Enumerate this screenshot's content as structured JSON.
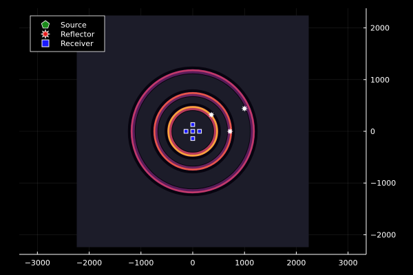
{
  "chart_data": {
    "type": "scatter",
    "title": "",
    "xlabel": "",
    "ylabel": "",
    "xlim": [
      -3350,
      3350
    ],
    "ylim": [
      -2380,
      2380
    ],
    "grid": true,
    "aspect": "equal",
    "x_ticks": [
      -3000,
      -2000,
      -1000,
      0,
      1000,
      2000,
      3000
    ],
    "x_tick_labels": [
      "−3000",
      "−2000",
      "−1000",
      "0",
      "1000",
      "2000",
      "3000"
    ],
    "y_ticks": [
      2000,
      1000,
      0,
      -1000,
      -2000
    ],
    "y_tick_labels": [
      "2000",
      "1000",
      "0",
      "−1000",
      "−2000"
    ],
    "heatmap_extent": [
      -2240,
      2240,
      -2240,
      2240
    ],
    "heatmap_background": "#1c1c29",
    "rings": [
      {
        "radius": 1180,
        "color": "#c2396b",
        "inner_glow": "#5a1c5a"
      },
      {
        "radius": 740,
        "color": "#e8554a",
        "inner_glow": "#6e2460"
      },
      {
        "radius": 470,
        "color": "#f9a33c",
        "inner_glow": "#b83c5c"
      }
    ],
    "legend": {
      "position": "top-left",
      "entries": [
        {
          "label": "Source",
          "marker": "pentagon",
          "color": "#1a8a1a"
        },
        {
          "label": "Reflector",
          "marker": "star8",
          "color": "#e81a1a"
        },
        {
          "label": "Receiver",
          "marker": "square",
          "color": "#1a1aff"
        }
      ]
    },
    "series": [
      {
        "name": "Source",
        "marker": "pentagon",
        "color": "#1a8a1a",
        "points": []
      },
      {
        "name": "Reflector",
        "marker": "star8",
        "color": "#ffffff",
        "points": [
          [
            360,
            320
          ],
          [
            720,
            0
          ],
          [
            1000,
            440
          ]
        ]
      },
      {
        "name": "Receiver",
        "marker": "square",
        "color": "#1a1aff",
        "points": [
          [
            0,
            0
          ],
          [
            0,
            130
          ],
          [
            0,
            -140
          ],
          [
            -130,
            0
          ],
          [
            130,
            0
          ]
        ]
      }
    ]
  }
}
